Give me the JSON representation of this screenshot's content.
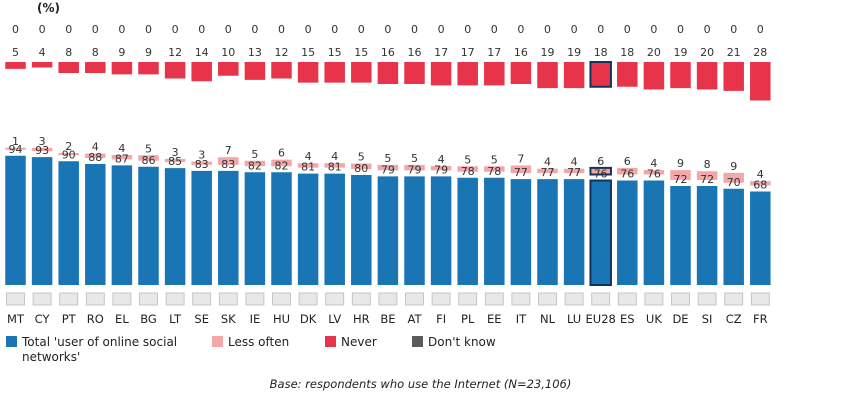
{
  "chart_data": {
    "type": "bar",
    "stacked": true,
    "unit_label": "(%)",
    "categories": [
      "MT",
      "CY",
      "PT",
      "RO",
      "EL",
      "BG",
      "LT",
      "SE",
      "SK",
      "IE",
      "HU",
      "DK",
      "LV",
      "HR",
      "BE",
      "AT",
      "FI",
      "PL",
      "EE",
      "IT",
      "NL",
      "LU",
      "EU28",
      "ES",
      "UK",
      "DE",
      "SI",
      "CZ",
      "FR"
    ],
    "highlight_category": "EU28",
    "series": [
      {
        "name": "Total 'user of online social networks'",
        "color": "#1a75b5",
        "values": [
          94,
          93,
          90,
          88,
          87,
          86,
          85,
          83,
          83,
          82,
          82,
          81,
          81,
          80,
          79,
          79,
          79,
          78,
          78,
          77,
          77,
          77,
          76,
          76,
          76,
          72,
          72,
          70,
          68
        ]
      },
      {
        "name": "Less often",
        "color": "#f4a7a9",
        "values": [
          1,
          3,
          2,
          4,
          4,
          5,
          3,
          3,
          7,
          5,
          6,
          4,
          4,
          5,
          5,
          5,
          4,
          5,
          5,
          7,
          4,
          4,
          6,
          6,
          4,
          9,
          8,
          9,
          4
        ]
      },
      {
        "name": "Never",
        "color": "#e8344a",
        "values": [
          5,
          4,
          8,
          8,
          9,
          9,
          12,
          14,
          10,
          13,
          12,
          15,
          15,
          15,
          16,
          16,
          17,
          17,
          17,
          16,
          19,
          19,
          18,
          18,
          20,
          19,
          20,
          21,
          28
        ]
      },
      {
        "name": "Don't know",
        "color": "#5b5b5b",
        "values": [
          0,
          0,
          0,
          0,
          0,
          0,
          0,
          0,
          0,
          0,
          0,
          0,
          0,
          0,
          0,
          0,
          0,
          0,
          0,
          0,
          0,
          0,
          0,
          0,
          0,
          0,
          0,
          0,
          0
        ]
      }
    ],
    "legend_position": "bottom-left",
    "grid": false
  },
  "legend": {
    "items": [
      {
        "label": "Total 'user of online social networks'",
        "color": "#1a75b5"
      },
      {
        "label": "Less often",
        "color": "#f4a7a9"
      },
      {
        "label": "Never",
        "color": "#e8344a"
      },
      {
        "label": "Don't know",
        "color": "#5b5b5b"
      }
    ]
  },
  "footnote": "Base: respondents who use the Internet (N=23,106)"
}
